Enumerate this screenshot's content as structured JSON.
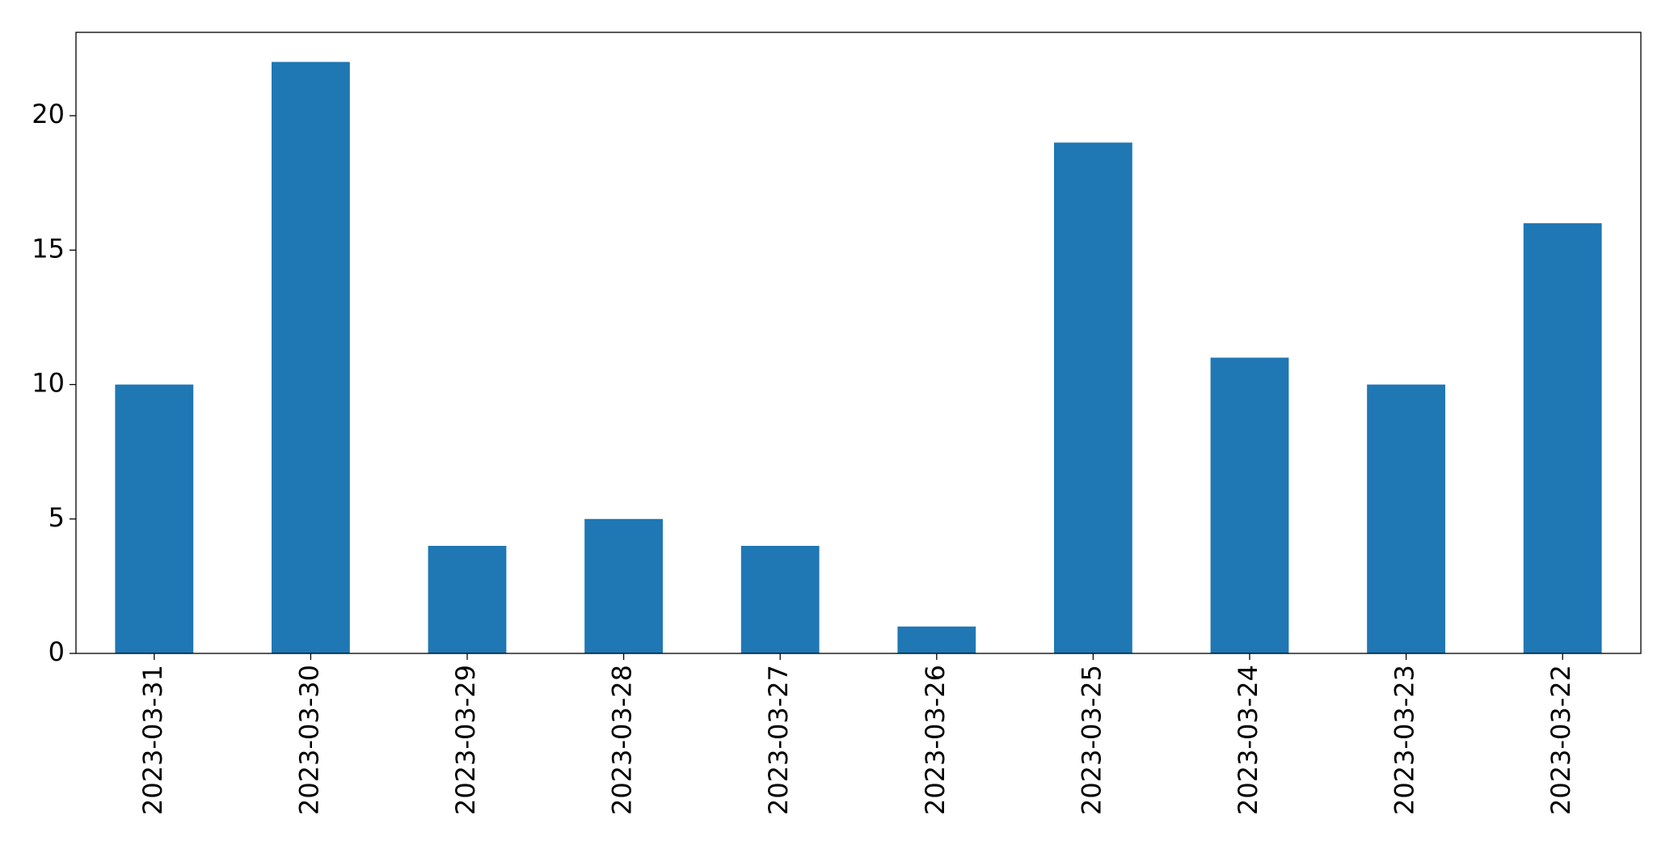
{
  "chart_data": {
    "type": "bar",
    "categories": [
      "2023-03-31",
      "2023-03-30",
      "2023-03-29",
      "2023-03-28",
      "2023-03-27",
      "2023-03-26",
      "2023-03-25",
      "2023-03-24",
      "2023-03-23",
      "2023-03-22"
    ],
    "values": [
      10,
      22,
      4,
      5,
      4,
      1,
      19,
      11,
      10,
      16
    ],
    "color": "#1f77b4",
    "ylim": [
      0,
      23.1
    ],
    "yticks": [
      0,
      5,
      10,
      15,
      20
    ],
    "grid": false
  }
}
